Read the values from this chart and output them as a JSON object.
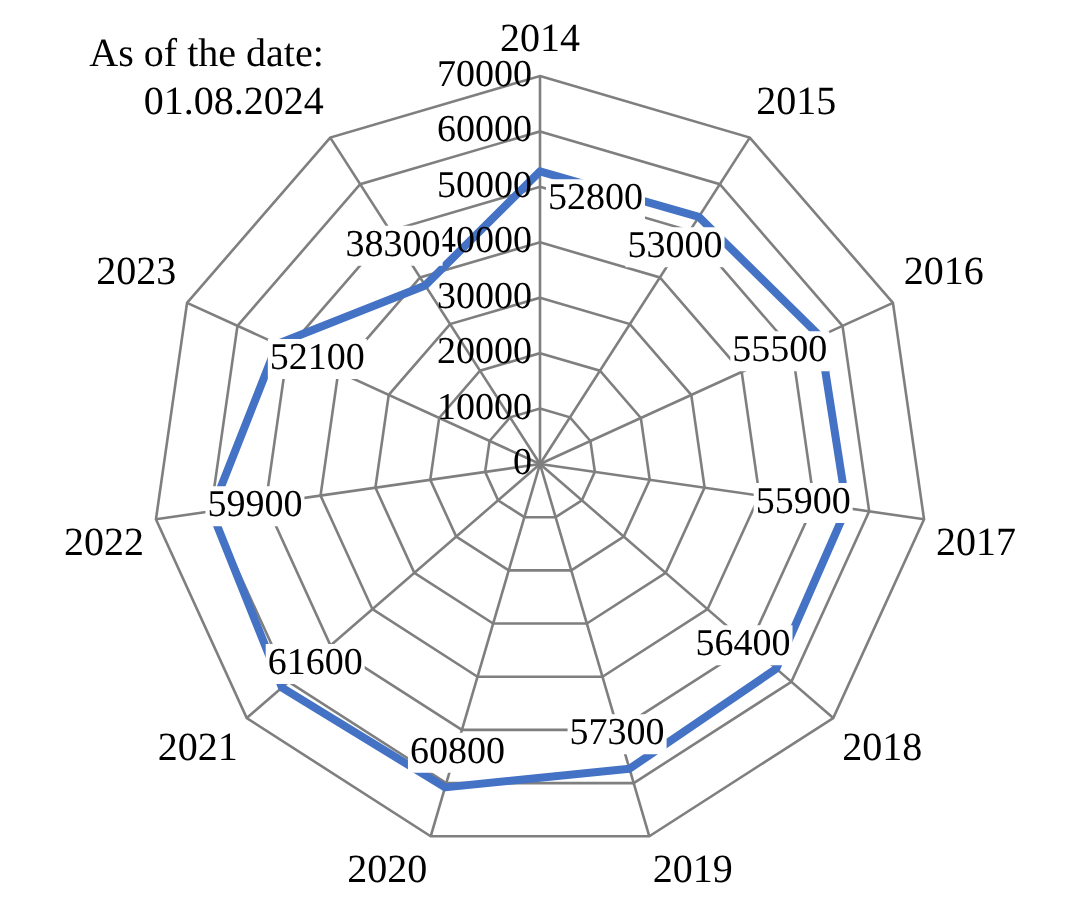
{
  "chart_data": {
    "type": "radar",
    "categories": [
      "2014",
      "2015",
      "2016",
      "2017",
      "2018",
      "2019",
      "2020",
      "2021",
      "2022",
      "2023",
      "As of the date:\n01.08.2024"
    ],
    "series": [
      {
        "color": "#4472c4",
        "values": [
          52800,
          53000,
          55500,
          55900,
          56400,
          57300,
          60800,
          61600,
          59900,
          52100,
          38300
        ]
      }
    ],
    "ylim": [
      0,
      70000
    ],
    "yticks": [
      0,
      10000,
      20000,
      30000,
      40000,
      50000,
      60000,
      70000
    ],
    "data_labels": true,
    "grid": true,
    "legend": false,
    "marker": "none",
    "line_style": "solid"
  }
}
